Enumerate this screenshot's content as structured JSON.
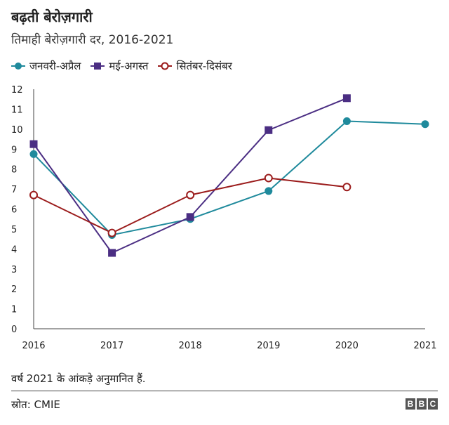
{
  "title": "बढ़ती बेरोज़गारी",
  "subtitle": "तिमाही बेरोज़गारी दर, 2016-2021",
  "note": "वर्ष 2021 के आंकड़े अनुमानित हैं.",
  "source": "स्रोत: CMIE",
  "logo": {
    "letters": [
      "B",
      "B",
      "C"
    ]
  },
  "colors": {
    "jan_apr": "#1f8a9c",
    "may_aug": "#4b2e83",
    "sep_dec": "#9b1c1c"
  },
  "chart_data": {
    "type": "line",
    "title": "बढ़ती बेरोज़गारी",
    "subtitle": "तिमाही बेरोज़गारी दर, 2016-2021",
    "x": [
      2016,
      2017,
      2018,
      2019,
      2020,
      2021
    ],
    "xlabel": "",
    "ylabel": "",
    "ylim": [
      0,
      12
    ],
    "yticks": [
      0,
      1,
      2,
      3,
      4,
      5,
      6,
      7,
      8,
      9,
      10,
      11,
      12
    ],
    "grid": false,
    "legend_position": "top-left",
    "series": [
      {
        "name": "जनवरी-अप्रैल",
        "marker": "filled-circle",
        "color": "#1f8a9c",
        "values": [
          8.75,
          4.7,
          5.5,
          6.9,
          10.4,
          10.25
        ]
      },
      {
        "name": "मई-अगस्त",
        "marker": "square",
        "color": "#4b2e83",
        "values": [
          9.25,
          3.8,
          5.6,
          9.95,
          11.55,
          null
        ]
      },
      {
        "name": "सितंबर-दिसंबर",
        "marker": "open-circle",
        "color": "#9b1c1c",
        "values": [
          6.7,
          4.8,
          6.7,
          7.55,
          7.1,
          null
        ]
      }
    ]
  }
}
